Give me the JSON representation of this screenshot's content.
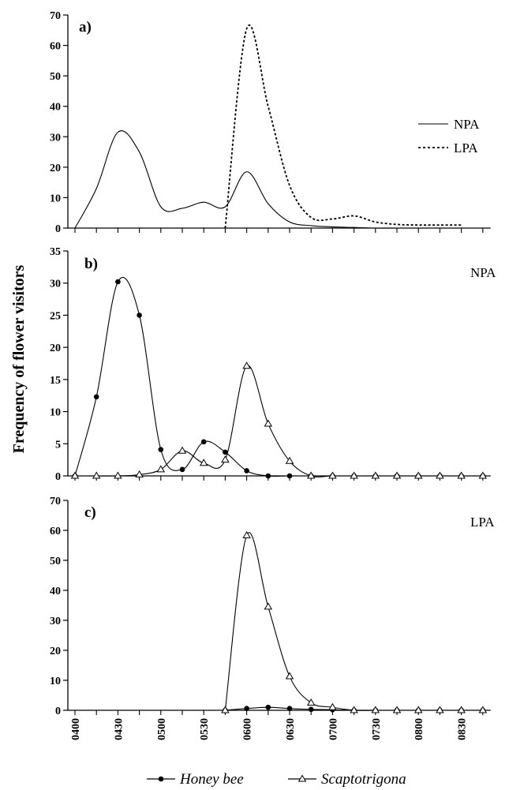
{
  "chart_data": {
    "type": "line",
    "ylabel": "Frequency of flower visitors",
    "x_tick_labels": [
      "0400",
      "0430",
      "0500",
      "0530",
      "0600",
      "0630",
      "0700",
      "0730",
      "0800",
      "0830"
    ],
    "x": [
      400,
      415,
      430,
      445,
      500,
      515,
      530,
      545,
      600,
      615,
      630,
      645,
      700,
      715,
      730,
      745,
      800,
      815,
      830,
      845
    ],
    "legend": {
      "series_a": "Honey bee",
      "series_b": "Scaptotrigona"
    },
    "panels": [
      {
        "label": "a)",
        "ylim": [
          0,
          70
        ],
        "yticks": [
          0,
          10,
          20,
          30,
          40,
          50,
          60,
          70
        ],
        "series": [
          {
            "name": "NPA",
            "style": "solid",
            "values": [
              0,
              13,
              31.5,
              25,
              7,
              6.5,
              8.5,
              7,
              18.5,
              8,
              2,
              0.8,
              0.4,
              0.2,
              0,
              0,
              0,
              0,
              0,
              0
            ]
          },
          {
            "name": "LPA",
            "style": "dotted",
            "values": [
              null,
              null,
              null,
              null,
              null,
              null,
              null,
              0,
              65.5,
              40,
              14,
              3.5,
              3,
              4,
              2,
              1.2,
              1,
              1,
              1,
              null
            ]
          }
        ]
      },
      {
        "label": "b)",
        "annotation": "NPA",
        "ylim": [
          0,
          35
        ],
        "yticks": [
          0,
          5,
          10,
          15,
          20,
          25,
          30,
          35
        ],
        "series": [
          {
            "name": "Honey bee",
            "marker": "circle",
            "values": [
              0,
              12.3,
              30.2,
              25,
              4.1,
              1,
              5.3,
              3.7,
              0.8,
              0,
              0,
              0,
              0,
              0,
              0,
              0,
              0,
              0,
              0,
              0
            ]
          },
          {
            "name": "Scaptotrigona",
            "marker": "triangle",
            "values": [
              0,
              0,
              0,
              0.2,
              1,
              3.9,
              2,
              2.5,
              17.1,
              8.1,
              2.3,
              0,
              0,
              0,
              0,
              0,
              0,
              0,
              0,
              0
            ]
          }
        ]
      },
      {
        "label": "c)",
        "annotation": "LPA",
        "ylim": [
          0,
          70
        ],
        "yticks": [
          0,
          10,
          20,
          30,
          40,
          50,
          60,
          70
        ],
        "series": [
          {
            "name": "Honey bee",
            "marker": "circle",
            "values": [
              null,
              null,
              null,
              null,
              null,
              null,
              null,
              0,
              0.6,
              1,
              0.6,
              0.3,
              0.2,
              0,
              0,
              0,
              0,
              0,
              0,
              0
            ]
          },
          {
            "name": "Scaptotrigona",
            "marker": "triangle",
            "values": [
              null,
              null,
              null,
              null,
              null,
              null,
              null,
              0,
              58.3,
              34.5,
              11.3,
              2.5,
              1,
              0,
              0,
              0,
              0,
              0,
              0,
              0
            ]
          }
        ]
      }
    ]
  }
}
